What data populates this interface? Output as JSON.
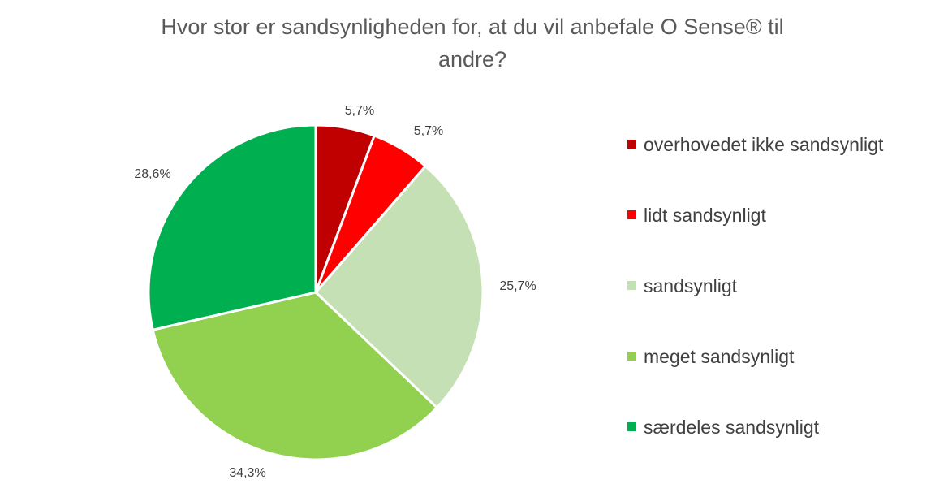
{
  "chart_data": {
    "type": "pie",
    "title": [
      "Hvor stor er sandsynligheden for, at du vil anbefale O Sense® til",
      "andre?"
    ],
    "legend_position": "right",
    "slices": [
      {
        "name": "overhovedet ikke sandsynligt",
        "value": 5.7,
        "label": "5,7%",
        "color": "#C00000"
      },
      {
        "name": "lidt sandsynligt",
        "value": 5.7,
        "label": "5,7%",
        "color": "#FF0000"
      },
      {
        "name": "sandsynligt",
        "value": 25.7,
        "label": "25,7%",
        "color": "#C5E0B4"
      },
      {
        "name": "meget sandsynligt",
        "value": 34.3,
        "label": "34,3%",
        "color": "#92D050"
      },
      {
        "name": "særdeles sandsynligt",
        "value": 28.6,
        "label": "28,6%",
        "color": "#00B050"
      }
    ]
  }
}
